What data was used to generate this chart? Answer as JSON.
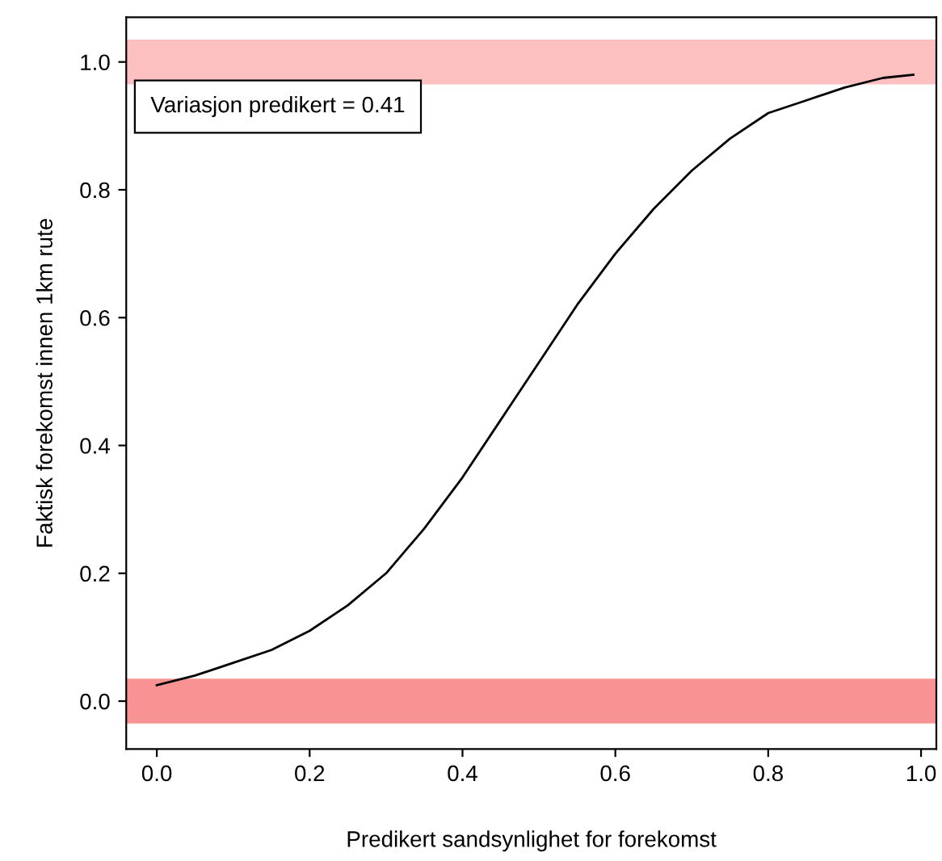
{
  "chart_data": {
    "type": "line",
    "xlabel": "Predikert sandsynlighet for forekomst",
    "ylabel": "Faktisk forekomst innen 1km rute",
    "x": [
      0,
      0.05,
      0.1,
      0.15,
      0.2,
      0.25,
      0.3,
      0.35,
      0.4,
      0.45,
      0.5,
      0.55,
      0.6,
      0.65,
      0.7,
      0.75,
      0.8,
      0.85,
      0.9,
      0.95,
      0.99
    ],
    "series": [
      {
        "color": "#000000",
        "values": [
          0.025,
          0.04,
          0.06,
          0.08,
          0.11,
          0.15,
          0.2,
          0.27,
          0.35,
          0.44,
          0.53,
          0.62,
          0.7,
          0.77,
          0.83,
          0.88,
          0.92,
          0.94,
          0.96,
          0.975,
          0.98
        ]
      }
    ],
    "bands": [
      {
        "axis": "y",
        "from": -0.035,
        "to": 0.035,
        "color": "#f87878"
      },
      {
        "axis": "y",
        "from": 0.965,
        "to": 1.035,
        "color": "#fbb0b0"
      }
    ],
    "annotations": [
      "Variasjon predikert = 0.41"
    ],
    "xlim": [
      -0.04,
      1.02
    ],
    "ylim": [
      -0.075,
      1.07
    ],
    "xticks": [
      {
        "value": 0,
        "label": "0.0"
      },
      0.2,
      0.4,
      0.6,
      0.8,
      {
        "value": 1,
        "label": "1.0"
      }
    ],
    "yticks": [
      {
        "value": 0,
        "label": "0.0"
      },
      0.2,
      0.4,
      0.6,
      0.8,
      {
        "value": 1,
        "label": "1.0"
      }
    ],
    "grid": false,
    "legend": false,
    "marker": "none",
    "line_style": "solid"
  }
}
